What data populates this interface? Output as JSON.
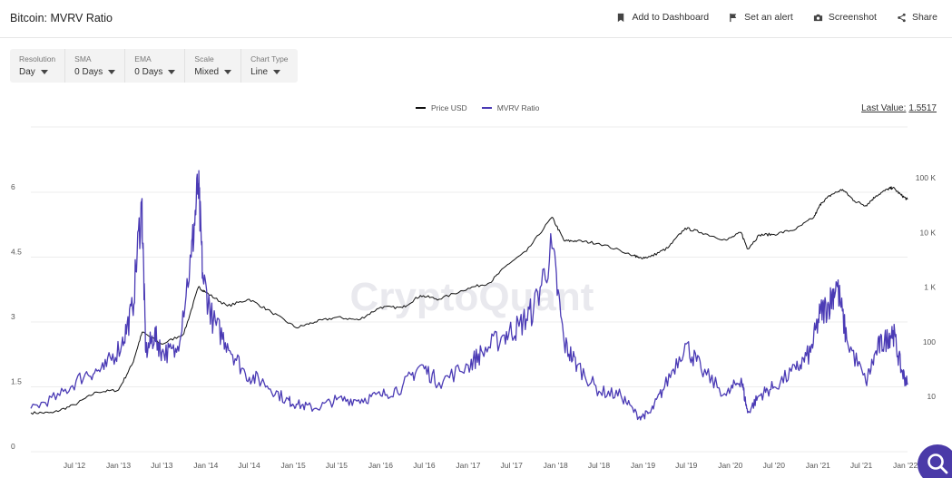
{
  "header": {
    "title": "Bitcoin: MVRV Ratio",
    "actions": {
      "dashboard": "Add to Dashboard",
      "alert": "Set an alert",
      "screenshot": "Screenshot",
      "share": "Share"
    }
  },
  "controls": {
    "resolution": {
      "label": "Resolution",
      "value": "Day"
    },
    "sma": {
      "label": "SMA",
      "value": "0 Days"
    },
    "ema": {
      "label": "EMA",
      "value": "0 Days"
    },
    "scale": {
      "label": "Scale",
      "value": "Mixed"
    },
    "chart_type": {
      "label": "Chart Type",
      "value": "Line"
    }
  },
  "last_value": {
    "label": "Last Value:",
    "value": "1.5517"
  },
  "watermark": "CryptoQuant",
  "colors": {
    "price": "#111111",
    "mvrv": "#4b3bb5",
    "grid": "#ececec",
    "accent": "#4a3aa8"
  },
  "chart_data": {
    "type": "line",
    "title": "Bitcoin: MVRV Ratio",
    "x_tick_labels": [
      "Jul '12",
      "Jan '13",
      "Jul '13",
      "Jan '14",
      "Jul '14",
      "Jan '15",
      "Jul '15",
      "Jan '16",
      "Jul '16",
      "Jan '17",
      "Jul '17",
      "Jan '18",
      "Jul '18",
      "Jan '19",
      "Jul '19",
      "Jan '20",
      "Jul '20",
      "Jan '21",
      "Jul '21",
      "Jan '22"
    ],
    "x_range": [
      "2012-01-01",
      "2022-01-10"
    ],
    "y_left": {
      "ticks": [
        0,
        1.5,
        3,
        4.5,
        6
      ],
      "tick_labels": [
        "0",
        "1.5",
        "3",
        "4.5",
        "6"
      ],
      "range": [
        0,
        6
      ]
    },
    "y_right": {
      "scale": "log",
      "ticks": [
        10,
        100,
        1000,
        10000,
        100000
      ],
      "tick_labels": [
        "10",
        "100",
        "1 K",
        "10 K",
        "100 K"
      ],
      "range": [
        5,
        200000
      ]
    },
    "grid": true,
    "legend": "top-center",
    "series": [
      {
        "name": "Price USD",
        "axis": "right",
        "color": "#111111",
        "x": [
          "2012-01-01",
          "2012-04-01",
          "2012-07-01",
          "2012-10-01",
          "2013-01-01",
          "2013-03-01",
          "2013-04-10",
          "2013-07-01",
          "2013-10-01",
          "2013-12-01",
          "2014-01-01",
          "2014-04-01",
          "2014-07-01",
          "2014-10-01",
          "2015-01-14",
          "2015-04-01",
          "2015-07-01",
          "2015-10-01",
          "2016-01-01",
          "2016-04-01",
          "2016-06-15",
          "2016-09-01",
          "2017-01-01",
          "2017-04-01",
          "2017-06-15",
          "2017-09-01",
          "2017-12-17",
          "2018-02-06",
          "2018-04-01",
          "2018-07-01",
          "2018-11-25",
          "2018-12-15",
          "2019-02-01",
          "2019-04-15",
          "2019-06-26",
          "2019-09-01",
          "2019-12-15",
          "2020-02-15",
          "2020-03-13",
          "2020-05-01",
          "2020-07-01",
          "2020-10-01",
          "2020-12-15",
          "2021-01-15",
          "2021-03-01",
          "2021-04-14",
          "2021-06-01",
          "2021-07-20",
          "2021-09-01",
          "2021-10-20",
          "2021-11-10",
          "2021-12-15",
          "2022-01-10"
        ],
        "y": [
          5,
          5,
          7,
          12,
          13,
          40,
          150,
          90,
          140,
          1000,
          800,
          450,
          600,
          350,
          180,
          230,
          280,
          250,
          430,
          420,
          700,
          600,
          950,
          1200,
          2600,
          4500,
          19000,
          7000,
          7000,
          6300,
          3800,
          3400,
          3600,
          5200,
          12000,
          10000,
          7200,
          10000,
          5000,
          9000,
          9200,
          11500,
          19000,
          35000,
          50000,
          61000,
          38000,
          31000,
          47000,
          62000,
          66000,
          48000,
          40000
        ]
      },
      {
        "name": "MVRV Ratio",
        "axis": "left",
        "color": "#4b3bb5",
        "x": [
          "2012-01-01",
          "2012-05-01",
          "2012-08-15",
          "2012-11-01",
          "2013-01-15",
          "2013-03-01",
          "2013-04-08",
          "2013-04-25",
          "2013-06-01",
          "2013-07-01",
          "2013-09-01",
          "2013-11-01",
          "2013-11-30",
          "2013-12-20",
          "2014-02-01",
          "2014-04-01",
          "2014-06-15",
          "2014-09-01",
          "2014-12-01",
          "2015-01-14",
          "2015-04-01",
          "2015-07-01",
          "2015-10-01",
          "2016-01-01",
          "2016-04-01",
          "2016-06-15",
          "2016-09-01",
          "2017-01-01",
          "2017-03-01",
          "2017-06-01",
          "2017-08-01",
          "2017-10-01",
          "2017-12-17",
          "2018-02-06",
          "2018-04-01",
          "2018-07-01",
          "2018-10-01",
          "2018-12-15",
          "2019-02-01",
          "2019-04-01",
          "2019-06-26",
          "2019-09-01",
          "2019-12-15",
          "2020-02-15",
          "2020-03-13",
          "2020-05-01",
          "2020-07-01",
          "2020-10-01",
          "2020-12-01",
          "2021-01-10",
          "2021-02-15",
          "2021-03-20",
          "2021-05-01",
          "2021-07-20",
          "2021-09-07",
          "2021-10-15",
          "2021-11-10",
          "2021-12-15",
          "2022-01-10"
        ],
        "y": [
          1.0,
          1.3,
          1.8,
          1.9,
          2.5,
          3.3,
          5.8,
          2.3,
          2.7,
          2.3,
          2.3,
          4.5,
          6.2,
          4.0,
          3.0,
          2.5,
          1.8,
          1.6,
          1.2,
          1.1,
          1.0,
          1.2,
          1.2,
          1.3,
          1.5,
          2.0,
          1.6,
          2.0,
          2.3,
          2.7,
          2.9,
          3.3,
          4.7,
          2.5,
          2.0,
          1.4,
          1.3,
          0.8,
          0.9,
          1.5,
          2.5,
          1.9,
          1.3,
          1.7,
          0.9,
          1.3,
          1.5,
          1.9,
          2.3,
          3.2,
          3.4,
          3.9,
          2.6,
          1.6,
          2.4,
          2.6,
          2.8,
          1.9,
          1.55
        ]
      }
    ]
  }
}
